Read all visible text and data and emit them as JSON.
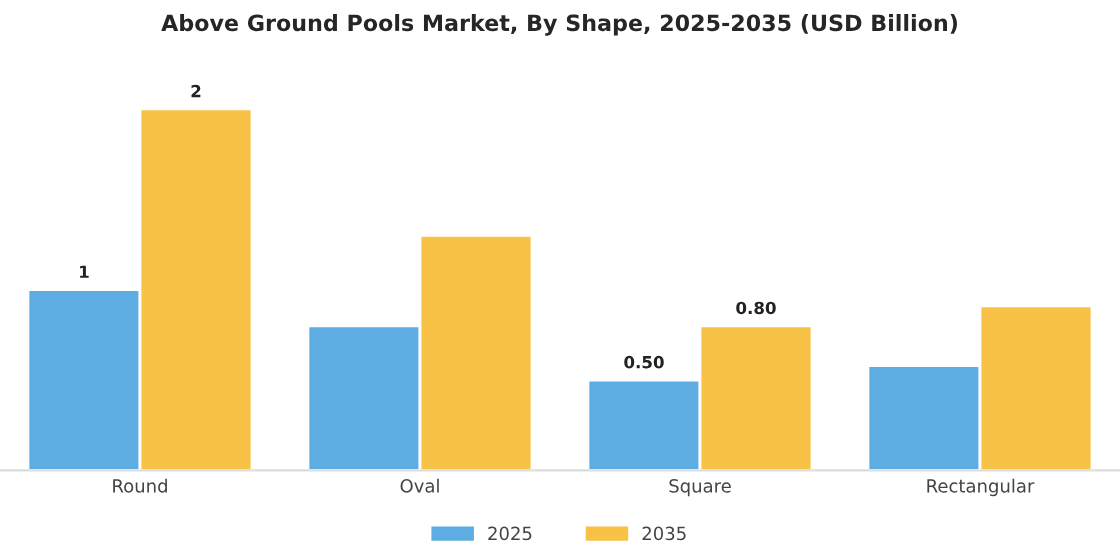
{
  "chart_data": {
    "type": "bar",
    "title": "Above Ground Pools Market, By Shape, 2025-2035 (USD Billion)",
    "categories": [
      "Round",
      "Oval",
      "Square",
      "Rectangular"
    ],
    "series": [
      {
        "name": "2025",
        "color": "#5dade2",
        "values": [
          1,
          0.8,
          0.5,
          0.58
        ],
        "value_labels": [
          "1",
          null,
          "0.50",
          null
        ]
      },
      {
        "name": "2035",
        "color": "#f8c246",
        "values": [
          2,
          1.3,
          0.8,
          0.91
        ],
        "value_labels": [
          "2",
          null,
          "0.80",
          null
        ]
      }
    ],
    "legend": "bottom",
    "grid": false
  }
}
